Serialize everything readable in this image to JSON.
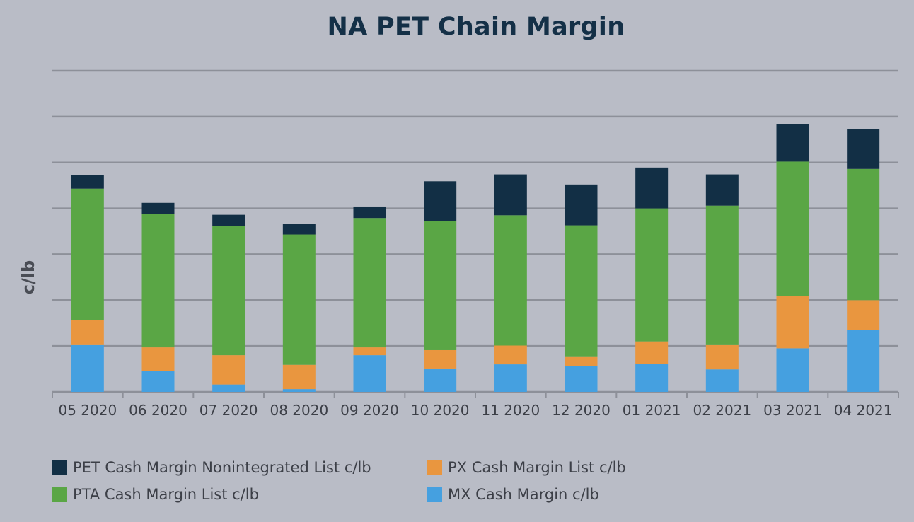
{
  "chart_data": {
    "type": "bar",
    "stacked": true,
    "title": "NA PET Chain Margin",
    "ylabel": "c/lb",
    "xlabel": "",
    "grid": true,
    "legend_position": "bottom",
    "ylim": [
      0,
      70
    ],
    "categories": [
      "05 2020",
      "06 2020",
      "07 2020",
      "08 2020",
      "09 2020",
      "10 2020",
      "11 2020",
      "12 2020",
      "01 2021",
      "02 2021",
      "03 2021",
      "04 2021"
    ],
    "series": [
      {
        "name": "MX Cash Margin c/lb",
        "color": "#45a0e0",
        "values": [
          10.2,
          4.6,
          1.6,
          0.6,
          8.0,
          5.1,
          6.0,
          5.7,
          6.1,
          4.9,
          9.5,
          13.5
        ]
      },
      {
        "name": "PX Cash Margin List c/lb",
        "color": "#e9963f",
        "values": [
          5.5,
          5.1,
          6.4,
          5.3,
          1.7,
          4.0,
          4.1,
          1.9,
          4.9,
          5.3,
          11.4,
          6.5
        ]
      },
      {
        "name": "PTA Cash Margin List c/lb",
        "color": "#5aa645",
        "values": [
          28.6,
          29.1,
          28.2,
          28.4,
          28.2,
          28.2,
          28.4,
          28.7,
          29.0,
          30.4,
          29.3,
          28.6
        ]
      },
      {
        "name": "PET Cash Margin Nonintegrated List c/lb",
        "color": "#122f45",
        "values": [
          2.9,
          2.4,
          2.4,
          2.3,
          2.5,
          8.6,
          8.9,
          8.9,
          8.9,
          6.8,
          8.2,
          8.7
        ]
      }
    ]
  },
  "legend": [
    {
      "label": "PET Cash Margin Nonintegrated List c/lb",
      "color": "#122f45"
    },
    {
      "label": "PX Cash Margin List c/lb",
      "color": "#e9963f"
    },
    {
      "label": "PTA Cash Margin List c/lb",
      "color": "#5aa645"
    },
    {
      "label": "MX Cash Margin c/lb",
      "color": "#45a0e0"
    }
  ]
}
